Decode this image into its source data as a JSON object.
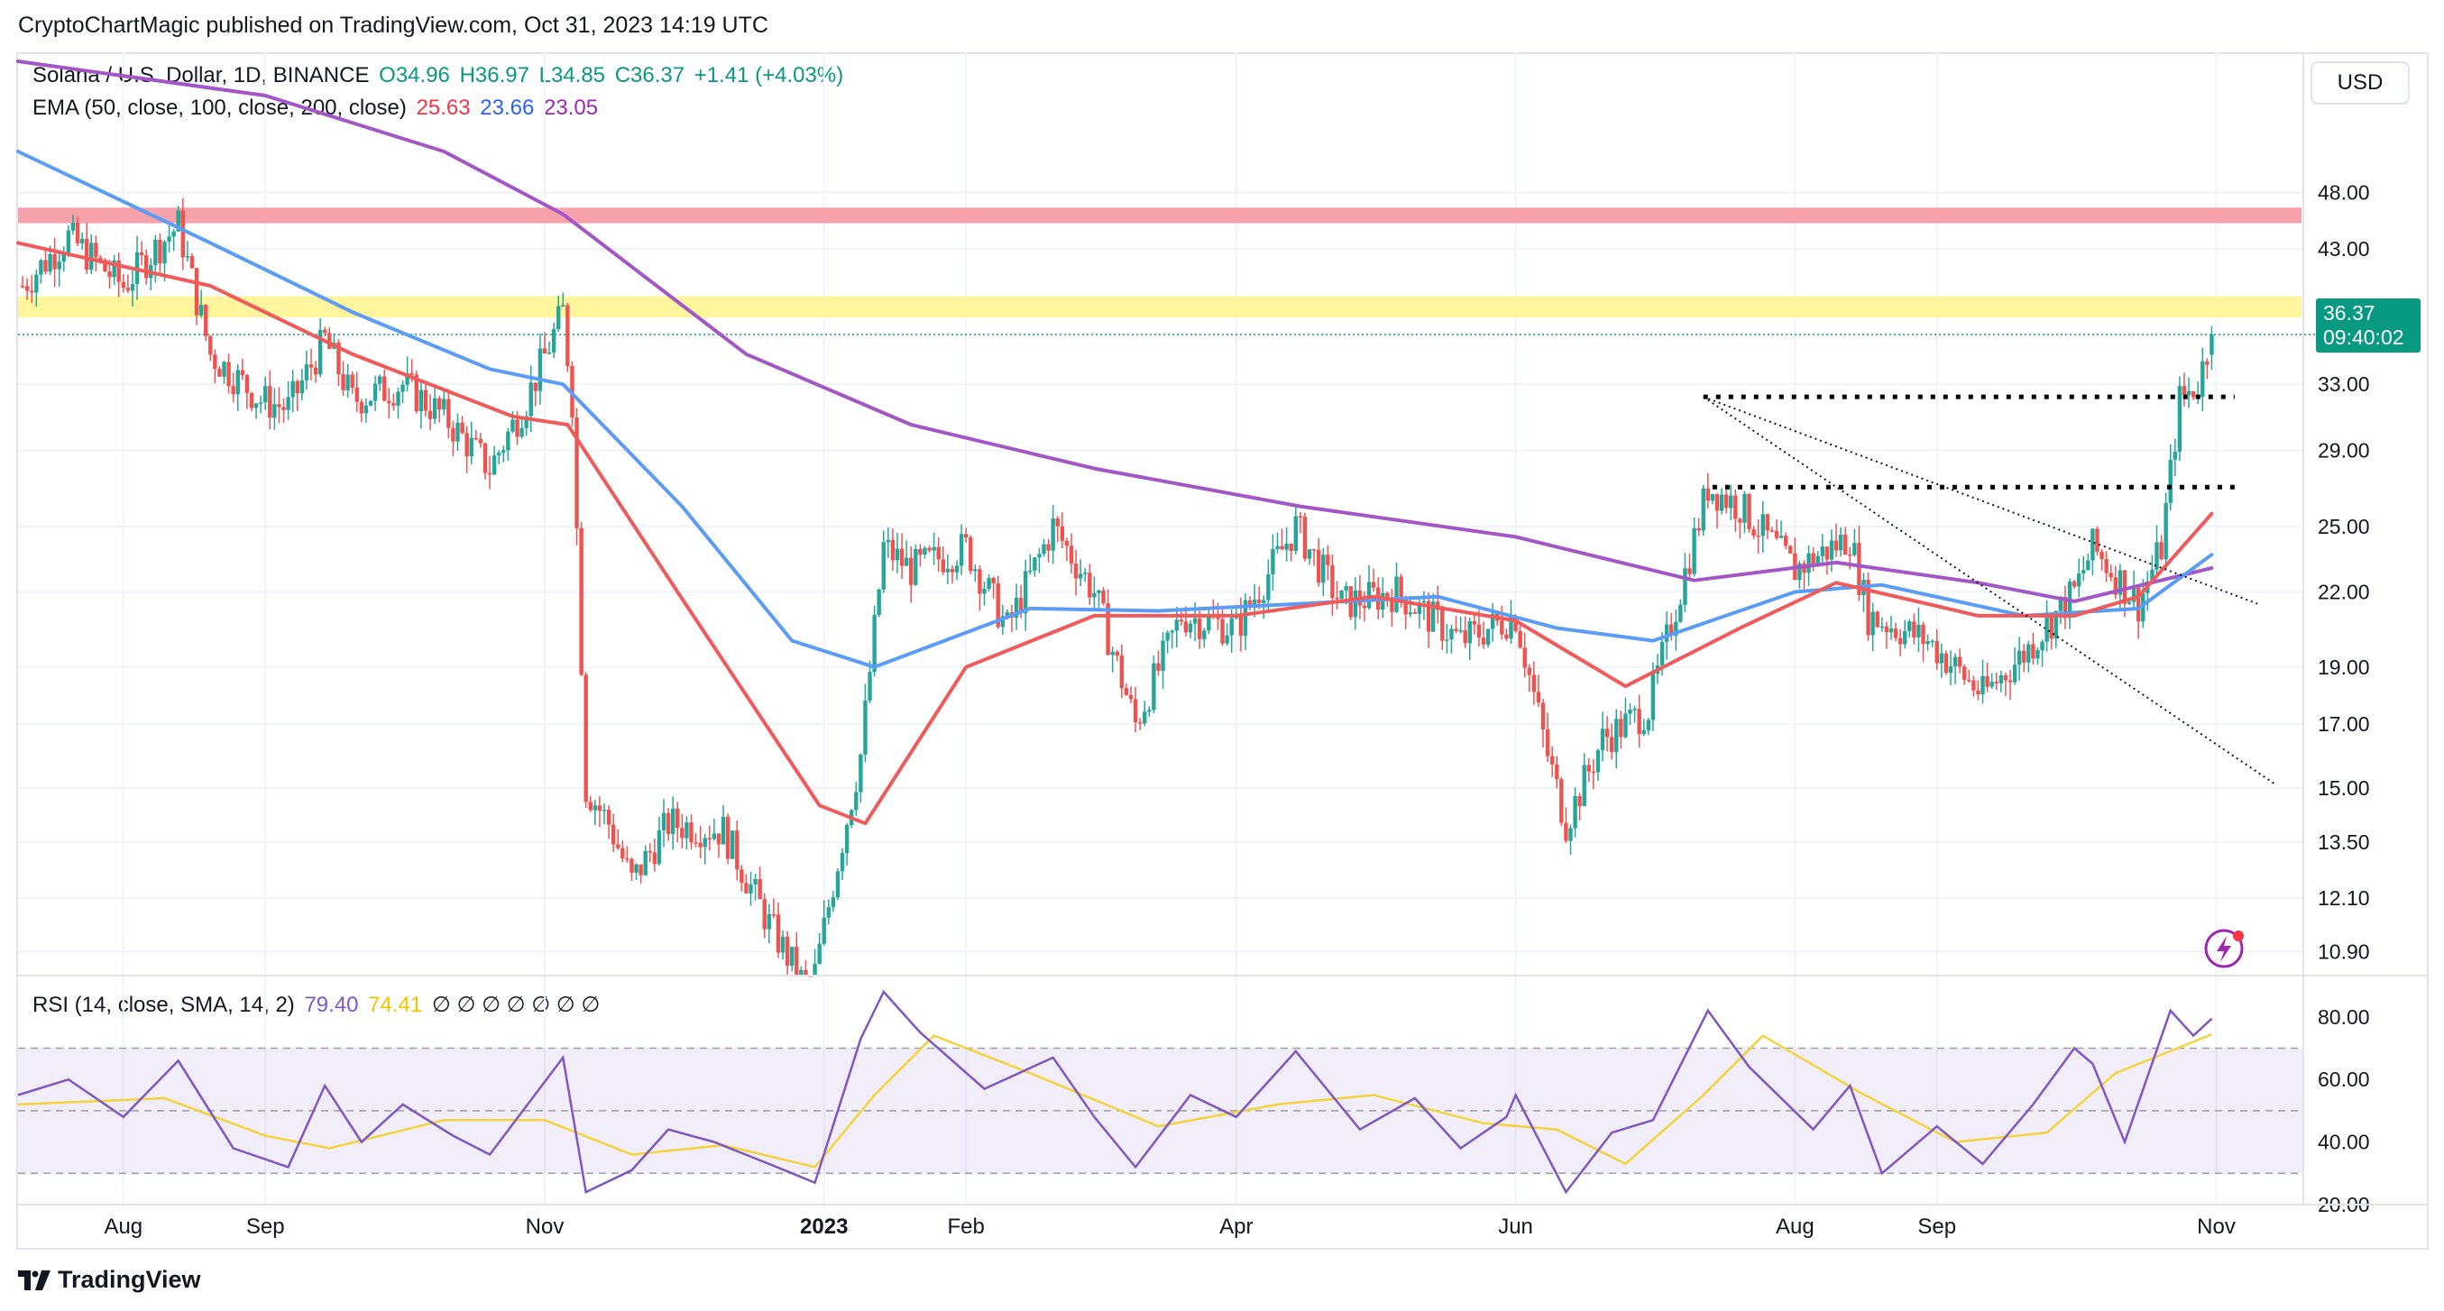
{
  "publisher_line": "CryptoChartMagic published on TradingView.com, Oct 31, 2023 14:19 UTC",
  "footer": {
    "brand": "TradingView"
  },
  "currency_button": "USD",
  "legend": {
    "symbol": "Solana / U.S. Dollar, 1D, BINANCE",
    "open": "O34.96",
    "high": "H36.97",
    "low": "L34.85",
    "close": "C36.37",
    "change": "+1.41 (+4.03%)",
    "ema_label": "EMA (50, close, 100, close, 200, close)",
    "ema50": "25.63",
    "ema100": "23.66",
    "ema200": "23.05",
    "rsi_label": "RSI (14, close, SMA, 14, 2)",
    "rsi_value": "79.40",
    "rsi_sma": "74.41",
    "rsi_extra": "∅ ∅ ∅ ∅ ∅ ∅ ∅"
  },
  "price_badge": {
    "price": "36.37",
    "countdown": "09:40:02"
  },
  "colors": {
    "up": "#26a69a",
    "down": "#ef5350",
    "ema50": "#f05a5a",
    "ema100": "#5b9cf6",
    "ema200": "#a357c7",
    "rsi": "#7e57c2",
    "rsi_sma": "#f5d33b",
    "resistance_red": "#f7a1aa",
    "resistance_yellow": "#fff59d"
  },
  "chart_data": [
    {
      "type": "candlestick",
      "title": "Solana / U.S. Dollar, 1D, BINANCE",
      "y_scale": "log",
      "ylim": [
        10.4,
        52
      ],
      "y_ticks": [
        "48.00",
        "43.00",
        "33.00",
        "29.00",
        "25.00",
        "22.00",
        "19.00",
        "17.00",
        "15.00",
        "13.50",
        "12.10",
        "10.90"
      ],
      "x_ticks": [
        {
          "label": "Aug",
          "date": "2022-08-01"
        },
        {
          "label": "Sep",
          "date": "2022-09-01"
        },
        {
          "label": "Nov",
          "date": "2022-11-01"
        },
        {
          "label": "2023",
          "date": "2023-01-01"
        },
        {
          "label": "Feb",
          "date": "2023-02-01"
        },
        {
          "label": "Apr",
          "date": "2023-04-01"
        },
        {
          "label": "Jun",
          "date": "2023-06-01"
        },
        {
          "label": "Aug",
          "date": "2023-08-01"
        },
        {
          "label": "Sep",
          "date": "2023-09-01"
        },
        {
          "label": "Nov",
          "date": "2023-11-01"
        }
      ],
      "xlim": [
        "2022-07-09",
        "2023-11-20"
      ],
      "close_path": [
        {
          "d": "2022-07-10",
          "v": 40
        },
        {
          "d": "2022-07-20",
          "v": 44
        },
        {
          "d": "2022-08-01",
          "v": 40
        },
        {
          "d": "2022-08-08",
          "v": 43
        },
        {
          "d": "2022-08-13",
          "v": 45
        },
        {
          "d": "2022-08-20",
          "v": 35
        },
        {
          "d": "2022-08-31",
          "v": 32
        },
        {
          "d": "2022-09-06",
          "v": 31.5
        },
        {
          "d": "2022-09-14",
          "v": 36
        },
        {
          "d": "2022-09-20",
          "v": 32
        },
        {
          "d": "2022-10-01",
          "v": 33
        },
        {
          "d": "2022-10-10",
          "v": 31
        },
        {
          "d": "2022-10-20",
          "v": 28
        },
        {
          "d": "2022-10-28",
          "v": 32
        },
        {
          "d": "2022-11-05",
          "v": 38
        },
        {
          "d": "2022-11-07",
          "v": 32
        },
        {
          "d": "2022-11-10",
          "v": 15
        },
        {
          "d": "2022-11-15",
          "v": 14
        },
        {
          "d": "2022-11-20",
          "v": 12.5
        },
        {
          "d": "2022-11-28",
          "v": 14
        },
        {
          "d": "2022-12-10",
          "v": 13.8
        },
        {
          "d": "2022-12-20",
          "v": 11.5
        },
        {
          "d": "2022-12-29",
          "v": 10
        },
        {
          "d": "2023-01-04",
          "v": 13
        },
        {
          "d": "2023-01-09",
          "v": 16
        },
        {
          "d": "2023-01-14",
          "v": 24
        },
        {
          "d": "2023-01-20",
          "v": 23
        },
        {
          "d": "2023-02-01",
          "v": 24
        },
        {
          "d": "2023-02-10",
          "v": 20.5
        },
        {
          "d": "2023-02-20",
          "v": 25
        },
        {
          "d": "2023-03-01",
          "v": 22
        },
        {
          "d": "2023-03-10",
          "v": 17
        },
        {
          "d": "2023-03-20",
          "v": 21
        },
        {
          "d": "2023-04-01",
          "v": 20.5
        },
        {
          "d": "2023-04-14",
          "v": 25
        },
        {
          "d": "2023-04-24",
          "v": 21.5
        },
        {
          "d": "2023-05-06",
          "v": 22
        },
        {
          "d": "2023-05-20",
          "v": 20
        },
        {
          "d": "2023-06-01",
          "v": 21
        },
        {
          "d": "2023-06-08",
          "v": 16
        },
        {
          "d": "2023-06-12",
          "v": 14
        },
        {
          "d": "2023-06-20",
          "v": 16.5
        },
        {
          "d": "2023-06-30",
          "v": 17.5
        },
        {
          "d": "2023-07-13",
          "v": 27
        },
        {
          "d": "2023-07-20",
          "v": 26
        },
        {
          "d": "2023-08-01",
          "v": 23
        },
        {
          "d": "2023-08-13",
          "v": 24.5
        },
        {
          "d": "2023-08-17",
          "v": 21
        },
        {
          "d": "2023-08-30",
          "v": 20
        },
        {
          "d": "2023-09-11",
          "v": 18
        },
        {
          "d": "2023-09-20",
          "v": 19.5
        },
        {
          "d": "2023-10-01",
          "v": 22
        },
        {
          "d": "2023-10-05",
          "v": 24
        },
        {
          "d": "2023-10-15",
          "v": 21.5
        },
        {
          "d": "2023-10-20",
          "v": 24
        },
        {
          "d": "2023-10-24",
          "v": 32
        },
        {
          "d": "2023-10-28",
          "v": 33
        },
        {
          "d": "2023-10-31",
          "v": 36.37
        }
      ],
      "ema50": [
        {
          "d": "2022-07-09",
          "v": 43.5
        },
        {
          "d": "2022-08-20",
          "v": 40
        },
        {
          "d": "2022-09-20",
          "v": 35
        },
        {
          "d": "2022-10-25",
          "v": 31
        },
        {
          "d": "2022-11-06",
          "v": 30.5
        },
        {
          "d": "2022-11-30",
          "v": 22
        },
        {
          "d": "2022-12-31",
          "v": 14.5
        },
        {
          "d": "2023-01-10",
          "v": 14
        },
        {
          "d": "2023-02-01",
          "v": 19
        },
        {
          "d": "2023-03-01",
          "v": 21
        },
        {
          "d": "2023-04-01",
          "v": 21
        },
        {
          "d": "2023-05-01",
          "v": 21.8
        },
        {
          "d": "2023-06-01",
          "v": 20.8
        },
        {
          "d": "2023-06-25",
          "v": 18.3
        },
        {
          "d": "2023-07-20",
          "v": 20.5
        },
        {
          "d": "2023-08-10",
          "v": 22.4
        },
        {
          "d": "2023-09-10",
          "v": 21
        },
        {
          "d": "2023-10-01",
          "v": 21
        },
        {
          "d": "2023-10-15",
          "v": 21.8
        },
        {
          "d": "2023-10-31",
          "v": 25.63
        }
      ],
      "ema100": [
        {
          "d": "2022-07-09",
          "v": 52
        },
        {
          "d": "2022-08-20",
          "v": 43.5
        },
        {
          "d": "2022-09-20",
          "v": 38
        },
        {
          "d": "2022-10-20",
          "v": 34
        },
        {
          "d": "2022-11-05",
          "v": 33
        },
        {
          "d": "2022-12-01",
          "v": 26
        },
        {
          "d": "2022-12-25",
          "v": 20
        },
        {
          "d": "2023-01-12",
          "v": 19
        },
        {
          "d": "2023-02-15",
          "v": 21.3
        },
        {
          "d": "2023-03-15",
          "v": 21.2
        },
        {
          "d": "2023-04-15",
          "v": 21.5
        },
        {
          "d": "2023-05-15",
          "v": 21.8
        },
        {
          "d": "2023-06-10",
          "v": 20.5
        },
        {
          "d": "2023-07-01",
          "v": 20
        },
        {
          "d": "2023-08-01",
          "v": 22
        },
        {
          "d": "2023-08-20",
          "v": 22.3
        },
        {
          "d": "2023-09-20",
          "v": 21
        },
        {
          "d": "2023-10-15",
          "v": 21.3
        },
        {
          "d": "2023-10-31",
          "v": 23.66
        }
      ],
      "ema200": [
        {
          "d": "2022-07-09",
          "v": 70
        },
        {
          "d": "2022-09-01",
          "v": 58
        },
        {
          "d": "2022-10-10",
          "v": 52
        },
        {
          "d": "2022-11-05",
          "v": 46
        },
        {
          "d": "2022-12-15",
          "v": 35
        },
        {
          "d": "2023-01-20",
          "v": 30.5
        },
        {
          "d": "2023-03-01",
          "v": 28
        },
        {
          "d": "2023-04-15",
          "v": 26
        },
        {
          "d": "2023-06-01",
          "v": 24.5
        },
        {
          "d": "2023-07-10",
          "v": 22.5
        },
        {
          "d": "2023-08-10",
          "v": 23.3
        },
        {
          "d": "2023-09-10",
          "v": 22.4
        },
        {
          "d": "2023-10-01",
          "v": 21.6
        },
        {
          "d": "2023-10-31",
          "v": 23.05
        }
      ],
      "zones": [
        {
          "color": "resistance_red",
          "from": 45.2,
          "to": 46.6
        },
        {
          "color": "resistance_yellow",
          "from": 37.6,
          "to": 39.2
        }
      ],
      "horizontal_levels": [
        {
          "value": 32.2,
          "start": "2023-07-12",
          "end": "2023-11-05",
          "style": "dotted-bold"
        },
        {
          "value": 27.0,
          "start": "2023-07-14",
          "end": "2023-11-05",
          "style": "dotted-bold"
        }
      ],
      "trend_lines": [
        {
          "from": {
            "d": "2023-07-12",
            "v": 32.2
          },
          "to": {
            "d": "2023-11-10",
            "v": 21.5
          }
        },
        {
          "from": {
            "d": "2023-07-12",
            "v": 32.2
          },
          "to": {
            "d": "2023-11-14",
            "v": 15.1
          }
        }
      ]
    },
    {
      "type": "line",
      "title": "RSI (14, close, SMA, 14, 2)",
      "ylim": [
        20,
        88
      ],
      "y_ticks": [
        "80.00",
        "60.00",
        "40.00",
        "20.00"
      ],
      "bands": {
        "upper": 70,
        "middle": 50,
        "lower": 30
      },
      "rsi": [
        {
          "d": "2022-07-09",
          "v": 55
        },
        {
          "d": "2022-07-20",
          "v": 60
        },
        {
          "d": "2022-08-01",
          "v": 48
        },
        {
          "d": "2022-08-13",
          "v": 66
        },
        {
          "d": "2022-08-25",
          "v": 38
        },
        {
          "d": "2022-09-06",
          "v": 32
        },
        {
          "d": "2022-09-14",
          "v": 58
        },
        {
          "d": "2022-09-22",
          "v": 40
        },
        {
          "d": "2022-10-01",
          "v": 52
        },
        {
          "d": "2022-10-12",
          "v": 42
        },
        {
          "d": "2022-10-20",
          "v": 36
        },
        {
          "d": "2022-11-05",
          "v": 67
        },
        {
          "d": "2022-11-10",
          "v": 24
        },
        {
          "d": "2022-11-20",
          "v": 31
        },
        {
          "d": "2022-11-28",
          "v": 44
        },
        {
          "d": "2022-12-08",
          "v": 40
        },
        {
          "d": "2022-12-20",
          "v": 33
        },
        {
          "d": "2022-12-30",
          "v": 27
        },
        {
          "d": "2023-01-09",
          "v": 73
        },
        {
          "d": "2023-01-14",
          "v": 88
        },
        {
          "d": "2023-01-22",
          "v": 75
        },
        {
          "d": "2023-02-05",
          "v": 57
        },
        {
          "d": "2023-02-20",
          "v": 67
        },
        {
          "d": "2023-03-01",
          "v": 48
        },
        {
          "d": "2023-03-10",
          "v": 32
        },
        {
          "d": "2023-03-22",
          "v": 55
        },
        {
          "d": "2023-04-01",
          "v": 48
        },
        {
          "d": "2023-04-14",
          "v": 69
        },
        {
          "d": "2023-04-28",
          "v": 44
        },
        {
          "d": "2023-05-10",
          "v": 54
        },
        {
          "d": "2023-05-20",
          "v": 38
        },
        {
          "d": "2023-05-30",
          "v": 48
        },
        {
          "d": "2023-06-01",
          "v": 55
        },
        {
          "d": "2023-06-12",
          "v": 24
        },
        {
          "d": "2023-06-22",
          "v": 43
        },
        {
          "d": "2023-07-01",
          "v": 47
        },
        {
          "d": "2023-07-13",
          "v": 82
        },
        {
          "d": "2023-07-22",
          "v": 64
        },
        {
          "d": "2023-08-05",
          "v": 44
        },
        {
          "d": "2023-08-13",
          "v": 58
        },
        {
          "d": "2023-08-20",
          "v": 30
        },
        {
          "d": "2023-09-01",
          "v": 45
        },
        {
          "d": "2023-09-11",
          "v": 33
        },
        {
          "d": "2023-09-22",
          "v": 52
        },
        {
          "d": "2023-10-01",
          "v": 70
        },
        {
          "d": "2023-10-05",
          "v": 65
        },
        {
          "d": "2023-10-12",
          "v": 40
        },
        {
          "d": "2023-10-22",
          "v": 82
        },
        {
          "d": "2023-10-27",
          "v": 74
        },
        {
          "d": "2023-10-31",
          "v": 79.4
        }
      ],
      "rsi_sma": [
        {
          "d": "2022-07-09",
          "v": 52
        },
        {
          "d": "2022-08-10",
          "v": 54
        },
        {
          "d": "2022-09-01",
          "v": 42
        },
        {
          "d": "2022-09-15",
          "v": 38
        },
        {
          "d": "2022-10-10",
          "v": 47
        },
        {
          "d": "2022-11-01",
          "v": 47
        },
        {
          "d": "2022-11-20",
          "v": 36
        },
        {
          "d": "2022-12-10",
          "v": 39
        },
        {
          "d": "2022-12-30",
          "v": 32
        },
        {
          "d": "2023-01-12",
          "v": 55
        },
        {
          "d": "2023-01-25",
          "v": 74
        },
        {
          "d": "2023-02-15",
          "v": 62
        },
        {
          "d": "2023-03-15",
          "v": 45
        },
        {
          "d": "2023-04-10",
          "v": 52
        },
        {
          "d": "2023-05-01",
          "v": 55
        },
        {
          "d": "2023-05-25",
          "v": 46
        },
        {
          "d": "2023-06-10",
          "v": 44
        },
        {
          "d": "2023-06-25",
          "v": 33
        },
        {
          "d": "2023-07-12",
          "v": 55
        },
        {
          "d": "2023-07-25",
          "v": 74
        },
        {
          "d": "2023-08-15",
          "v": 56
        },
        {
          "d": "2023-09-05",
          "v": 40
        },
        {
          "d": "2023-09-25",
          "v": 43
        },
        {
          "d": "2023-10-10",
          "v": 62
        },
        {
          "d": "2023-10-31",
          "v": 74.41
        }
      ]
    }
  ]
}
